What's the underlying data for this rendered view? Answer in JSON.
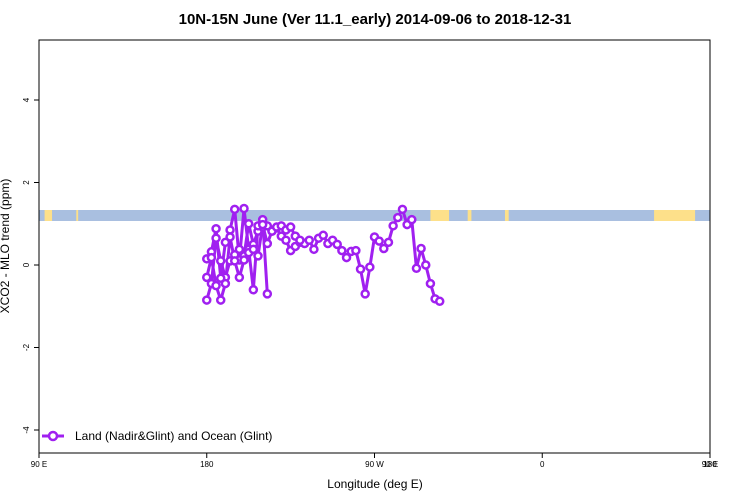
{
  "chart_data": {
    "type": "line",
    "title": "10N-15N June (Ver 11.1_early)   2014-09-06 to 2018-12-31",
    "xlabel": "Longitude (deg E)",
    "ylabel": "XCO2 - MLO trend (ppm)",
    "xlim": [
      90,
      450
    ],
    "ylim": [
      -4.5,
      5.5
    ],
    "x_ticks": [
      {
        "value": 90,
        "label": "90 E"
      },
      {
        "value": 180,
        "label": "180"
      },
      {
        "value": 270,
        "label": "90 W"
      },
      {
        "value": 360,
        "label": "0"
      },
      {
        "value": 450,
        "label": "90 E"
      }
    ],
    "x_ticks_right": [
      {
        "value": 450,
        "label": "180"
      }
    ],
    "y_ticks": [
      -4,
      -2,
      0,
      2,
      4
    ],
    "grid": false,
    "legend_position": "bottom-left",
    "series_color": "#a020f0",
    "land_color": "#fde08a",
    "ocean_color": "#a9bfe0",
    "series": [
      {
        "name": "Land (Nadir&Glint) and Ocean (Glint)",
        "segments": [
          [
            [
              -180,
              -0.85
            ],
            [
              -177.5,
              -0.45
            ],
            [
              -175,
              0.65
            ],
            [
              -172.5,
              0.1
            ],
            [
              -170,
              -0.3
            ],
            [
              -167.5,
              0.1
            ],
            [
              -165,
              0.25
            ],
            [
              -162.5,
              0.38
            ],
            [
              -160,
              0.22
            ],
            [
              -157.5,
              1.0
            ],
            [
              -155,
              0.5
            ],
            [
              -152.5,
              0.82
            ],
            [
              -150,
              0.92
            ],
            [
              -147.5,
              0.95
            ],
            [
              -145,
              0.82
            ],
            [
              -142.5,
              0.9
            ],
            [
              -140,
              0.7
            ],
            [
              -137.5,
              0.6
            ],
            [
              -135,
              0.35
            ],
            [
              -132.5,
              0.45
            ],
            [
              -130,
              0.55
            ],
            [
              -127.5,
              0.52
            ],
            [
              -125,
              0.6
            ],
            [
              -122.5,
              0.38
            ],
            [
              -120,
              0.65
            ],
            [
              -117.5,
              0.72
            ],
            [
              -115,
              0.52
            ],
            [
              -112.5,
              0.6
            ],
            [
              -110,
              0.5
            ],
            [
              -107.5,
              0.35
            ],
            [
              -105,
              0.18
            ],
            [
              -102.5,
              0.33
            ],
            [
              -100,
              0.35
            ],
            [
              -97.5,
              -0.1
            ],
            [
              -95,
              -0.7
            ],
            [
              -92.5,
              -0.05
            ],
            [
              -90,
              0.68
            ],
            [
              -87.5,
              0.58
            ],
            [
              -85,
              0.4
            ],
            [
              -82.5,
              0.55
            ],
            [
              -80,
              0.95
            ],
            [
              -77.5,
              1.15
            ],
            [
              -75,
              1.35
            ],
            [
              -72.5,
              0.98
            ],
            [
              -70,
              1.1
            ],
            [
              -67.5,
              -0.08
            ],
            [
              -65,
              0.4
            ],
            [
              -62.5,
              0.0
            ],
            [
              -60,
              -0.45
            ],
            [
              -57.5,
              -0.82
            ],
            [
              -55,
              -0.88
            ]
          ],
          [
            [
              -180,
              0.15
            ],
            [
              -177.5,
              0.32
            ],
            [
              -175,
              0.88
            ],
            [
              -172.5,
              -0.32
            ],
            [
              -170,
              0.55
            ],
            [
              -167.5,
              0.85
            ],
            [
              -165,
              1.35
            ],
            [
              -162.5,
              0.12
            ],
            [
              -160,
              1.37
            ],
            [
              -157.5,
              0.38
            ],
            [
              -155,
              -0.6
            ],
            [
              -152.5,
              0.95
            ],
            [
              -150,
              1.1
            ],
            [
              -147.5,
              -0.7
            ]
          ],
          [
            [
              -180,
              -0.3
            ],
            [
              -177.5,
              0.18
            ],
            [
              -175,
              -0.5
            ],
            [
              -172.5,
              -0.85
            ],
            [
              -170,
              -0.45
            ],
            [
              -167.5,
              0.68
            ],
            [
              -165,
              0.1
            ],
            [
              -162.5,
              -0.3
            ],
            [
              -160,
              0.12
            ],
            [
              -157.5,
              0.3
            ],
            [
              -155,
              0.38
            ],
            [
              -152.5,
              0.22
            ],
            [
              -150,
              0.98
            ],
            [
              -147.5,
              0.52
            ],
            [
              -145,
              0.82
            ],
            [
              -142.5,
              0.92
            ],
            [
              -140,
              0.95
            ],
            [
              -137.5,
              0.85
            ],
            [
              -135,
              0.92
            ],
            [
              -132.5,
              0.7
            ],
            [
              -130,
              0.6
            ]
          ]
        ]
      }
    ]
  }
}
